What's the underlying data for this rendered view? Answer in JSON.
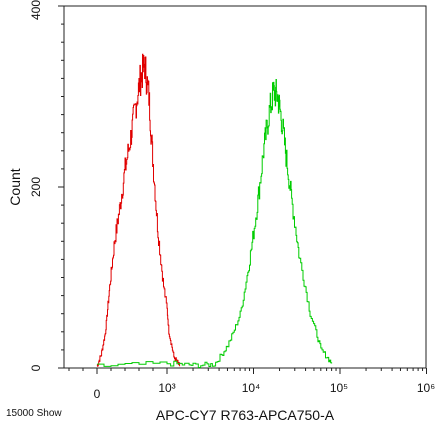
{
  "chart_data": {
    "type": "line",
    "title": "",
    "xlabel": "APC-CY7 R763-APCA750-A",
    "ylabel": "Count",
    "x_scale": "biexponential (linear near 0, log above)",
    "x_tick_labels": [
      "0",
      "10³",
      "10⁴",
      "10⁵",
      "10⁶"
    ],
    "y_tick_labels": [
      "0",
      "200",
      "400"
    ],
    "ylim": [
      0,
      400
    ],
    "grid": false,
    "legend": "none",
    "footnote": "15000 Show",
    "series": [
      {
        "color": "#e00000",
        "x": [
          0,
          60,
          120,
          180,
          250,
          320,
          400,
          480,
          550,
          620,
          680,
          740,
          800,
          870,
          950,
          1050,
          1200,
          1400
        ],
        "y": [
          2,
          15,
          40,
          90,
          140,
          175,
          220,
          255,
          290,
          320,
          335,
          300,
          225,
          150,
          90,
          40,
          12,
          2
        ]
      },
      {
        "color": "#00cc00",
        "x": [
          0,
          1000,
          2000,
          3500,
          5000,
          7000,
          9000,
          11000,
          13000,
          15000,
          17000,
          19000,
          21000,
          24000,
          28000,
          34000,
          45000,
          60000,
          80000
        ],
        "y": [
          2,
          5,
          3,
          4,
          25,
          60,
          120,
          180,
          240,
          280,
          305,
          300,
          275,
          230,
          180,
          120,
          60,
          20,
          5
        ]
      }
    ]
  }
}
